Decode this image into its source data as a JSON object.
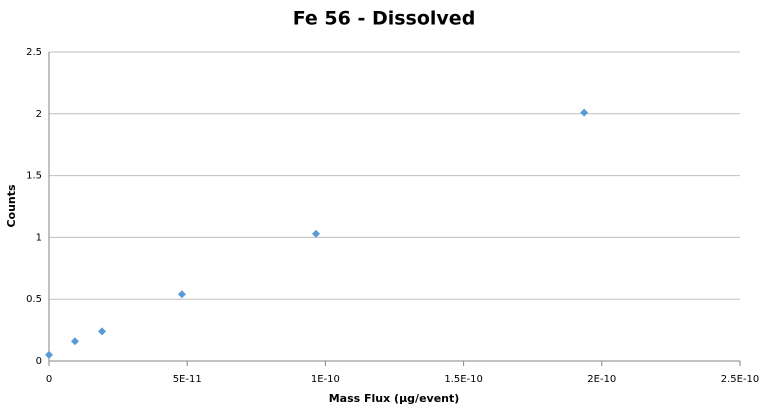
{
  "chart_data": {
    "type": "scatter",
    "title": "Fe 56 - Dissolved",
    "x_label": "Mass Flux (µg/event)",
    "y_label": "Counts",
    "series": [
      {
        "color": "#5b9bd5",
        "x": [
          0,
          9.4e-12,
          1.92e-11,
          4.81e-11,
          9.66e-11,
          1.936e-10
        ],
        "values": [
          0.05,
          0.16,
          0.24,
          0.54,
          1.03,
          2.01
        ]
      }
    ],
    "xlim": [
      0,
      2.5e-10
    ],
    "xticks": [
      0,
      {
        "value": 5e-11,
        "label": "5E-11"
      },
      {
        "value": 1e-10,
        "label": "1E-10"
      },
      {
        "value": 1.5e-10,
        "label": "1.5E-10"
      },
      {
        "value": 2e-10,
        "label": "2E-10"
      },
      {
        "value": 2.5e-10,
        "label": "2.5E-10"
      }
    ],
    "ylim": [
      0,
      2.5
    ],
    "yticks": [
      0,
      0.5,
      1,
      1.5,
      2,
      2.5
    ],
    "grid": true
  }
}
